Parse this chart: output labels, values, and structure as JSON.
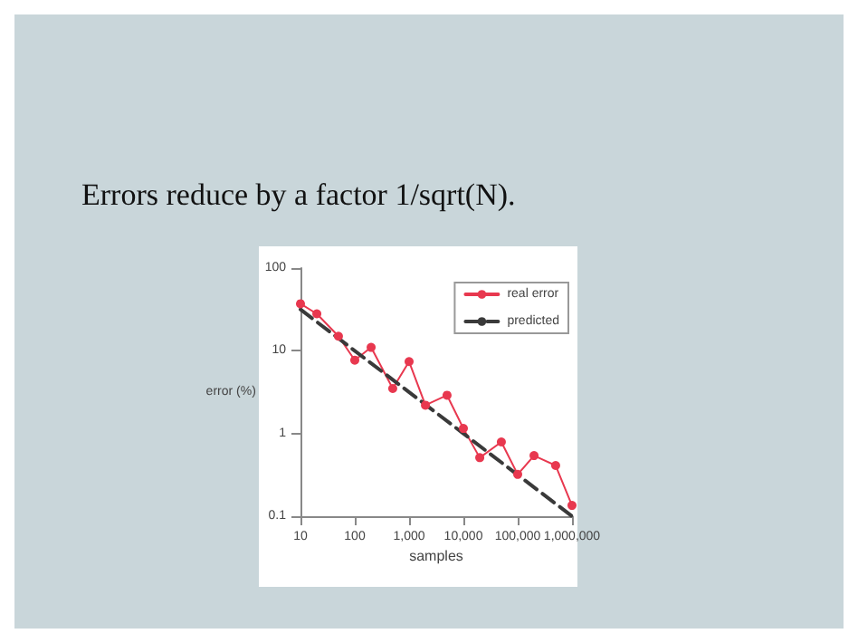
{
  "chart_data": {
    "type": "line",
    "title": "Errors reduce by a factor 1/sqrt(N).",
    "xlabel": "samples",
    "ylabel": "error (%)",
    "log": "xy",
    "xlim": [
      10,
      1000000
    ],
    "xticks": [
      10,
      {
        "value": 100,
        "label": "100"
      },
      {
        "value": 1000,
        "label": "1,000"
      },
      {
        "value": 10000,
        "label": "10,000"
      },
      {
        "value": 100000,
        "label": "100,000"
      },
      {
        "value": 1000000,
        "label": "1,000,000"
      }
    ],
    "ylim": [
      0.1,
      100
    ],
    "yticks": [
      0.1,
      1,
      10,
      100
    ],
    "grid": false,
    "legend": "top right",
    "series": [
      {
        "name": "real error",
        "color": "#e8384f",
        "marker": "circle",
        "line_style": "solid",
        "x": [
          10,
          20,
          50,
          100,
          200,
          500,
          1000,
          2000,
          5000,
          10000,
          20000,
          50000,
          100000,
          200000,
          500000,
          1000000
        ],
        "values": [
          37,
          28,
          15,
          7.7,
          11,
          3.5,
          7.4,
          2.2,
          2.9,
          1.15,
          0.51,
          0.79,
          0.32,
          0.54,
          0.41,
          0.135
        ]
      },
      {
        "name": "predicted",
        "color": "#3a3a3a",
        "marker": "none",
        "line_style": "dashed",
        "x": [
          10,
          1000000
        ],
        "values": [
          31.6,
          0.1
        ]
      }
    ]
  }
}
